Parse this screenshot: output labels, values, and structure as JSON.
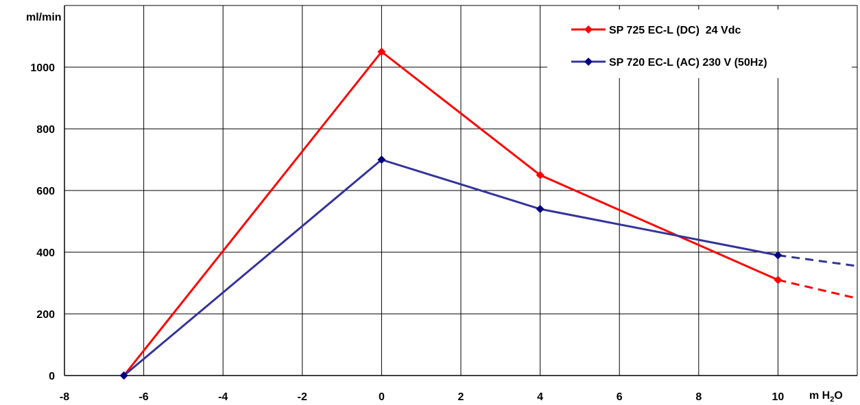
{
  "chart_data": {
    "type": "line",
    "ylabel": "ml/min",
    "xlabel_main": "m H",
    "xlabel_sub": "2",
    "xlabel_tail": "O",
    "xlim": [
      -8,
      12
    ],
    "ylim": [
      0,
      1200
    ],
    "xticks": [
      -8,
      -6,
      -4,
      -2,
      0,
      2,
      4,
      6,
      8,
      10
    ],
    "yticks": [
      0,
      200,
      400,
      600,
      800,
      1000
    ],
    "grid": true,
    "legend_position": "top-right",
    "series": [
      {
        "name": "SP 725 EC-L (DC)  24 Vdc",
        "color": "#ff0000",
        "x": [
          -6.5,
          0,
          4,
          10
        ],
        "y": [
          0,
          1050,
          650,
          310
        ],
        "extrapolated": {
          "x": [
            10,
            12
          ],
          "y": [
            310,
            250
          ]
        }
      },
      {
        "name": "SP 720 EC-L (AC) 230 V (50Hz)",
        "color": "#333399",
        "x": [
          -6.5,
          0,
          4,
          10
        ],
        "y": [
          0,
          700,
          540,
          390
        ],
        "extrapolated": {
          "x": [
            10,
            12
          ],
          "y": [
            390,
            355
          ]
        }
      }
    ]
  }
}
